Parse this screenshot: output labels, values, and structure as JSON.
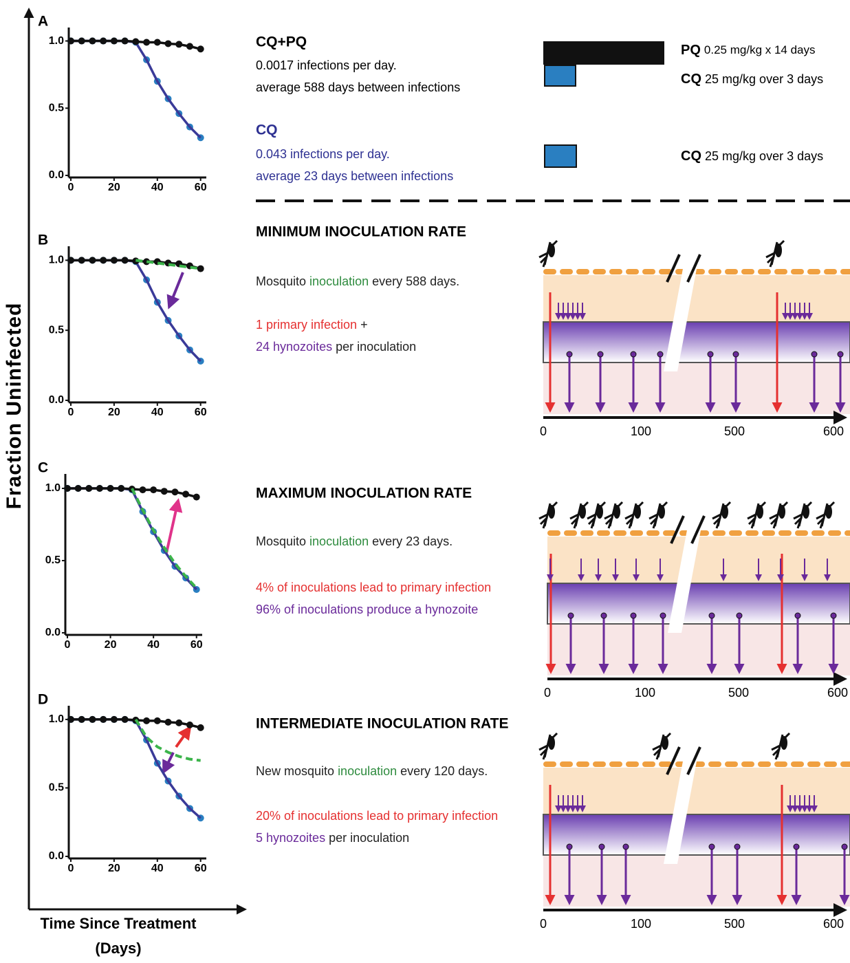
{
  "chart_data": [
    {
      "type": "line",
      "title": "A",
      "x": [
        0,
        5,
        10,
        15,
        20,
        25,
        30,
        35,
        40,
        45,
        50,
        55,
        60
      ],
      "xlim": [
        0,
        62
      ],
      "ylim": [
        0,
        1.1
      ],
      "xticks": [
        0,
        20,
        40,
        60
      ],
      "yticks": [
        {
          "value": 0,
          "label": "0.0"
        },
        {
          "value": 0.5,
          "label": "0.5"
        },
        {
          "value": 1,
          "label": "1.0"
        }
      ],
      "series": [
        {
          "color": "#2a7fc1",
          "line_color": "#3a3a98",
          "markers": true,
          "values": [
            1,
            1,
            1,
            1,
            1,
            1,
            0.99,
            0.86,
            0.7,
            0.57,
            0.46,
            0.36,
            0.28
          ]
        },
        {
          "color": "#111111",
          "line_color": "#111111",
          "markers": true,
          "values": [
            1,
            1,
            1,
            1,
            1,
            1,
            0.995,
            0.99,
            0.99,
            0.98,
            0.975,
            0.96,
            0.94
          ]
        }
      ]
    },
    {
      "type": "line",
      "title": "B",
      "x": [
        0,
        5,
        10,
        15,
        20,
        25,
        30,
        35,
        40,
        45,
        50,
        55,
        60
      ],
      "xlim": [
        0,
        62
      ],
      "ylim": [
        0,
        1.1
      ],
      "xticks": [
        0,
        20,
        40,
        60
      ],
      "yticks": [
        {
          "value": 0,
          "label": "0.0"
        },
        {
          "value": 0.5,
          "label": "0.5"
        },
        {
          "value": 1,
          "label": "1.0"
        }
      ],
      "series": [
        {
          "color": "#2a7fc1",
          "line_color": "#3a3a98",
          "markers": true,
          "values": [
            1,
            1,
            1,
            1,
            1,
            1,
            0.99,
            0.86,
            0.7,
            0.57,
            0.46,
            0.36,
            0.28
          ]
        },
        {
          "color": "#111111",
          "line_color": "#111111",
          "markers": true,
          "values": [
            1,
            1,
            1,
            1,
            1,
            1,
            0.995,
            0.99,
            0.99,
            0.98,
            0.975,
            0.96,
            0.94
          ]
        },
        {
          "color": "#3cb44b",
          "line_color": "#3cb44b",
          "markers": false,
          "dashed": true,
          "values": [
            null,
            null,
            null,
            null,
            null,
            null,
            1,
            0.99,
            0.98,
            0.97,
            0.96,
            0.95,
            0.94
          ]
        }
      ]
    },
    {
      "type": "line",
      "title": "C",
      "x": [
        0,
        5,
        10,
        15,
        20,
        25,
        30,
        35,
        40,
        45,
        50,
        55,
        60
      ],
      "xlim": [
        0,
        62
      ],
      "ylim": [
        0,
        1.1
      ],
      "xticks": [
        0,
        20,
        40,
        60
      ],
      "yticks": [
        {
          "value": 0,
          "label": "0.0"
        },
        {
          "value": 0.5,
          "label": "0.5"
        },
        {
          "value": 1,
          "label": "1.0"
        }
      ],
      "series": [
        {
          "color": "#2a7fc1",
          "line_color": "#3a3a98",
          "markers": true,
          "values": [
            1,
            1,
            1,
            1,
            1,
            1,
            0.99,
            0.84,
            0.7,
            0.57,
            0.46,
            0.38,
            0.3
          ]
        },
        {
          "color": "#111111",
          "line_color": "#111111",
          "markers": true,
          "values": [
            1,
            1,
            1,
            1,
            1,
            1,
            0.995,
            0.99,
            0.99,
            0.98,
            0.975,
            0.96,
            0.94
          ]
        },
        {
          "color": "#3cb44b",
          "line_color": "#3cb44b",
          "markers": false,
          "dashed": true,
          "values": [
            null,
            null,
            null,
            null,
            null,
            null,
            1,
            0.85,
            0.71,
            0.59,
            0.48,
            0.39,
            0.31
          ]
        }
      ]
    },
    {
      "type": "line",
      "title": "D",
      "x": [
        0,
        5,
        10,
        15,
        20,
        25,
        30,
        35,
        40,
        45,
        50,
        55,
        60
      ],
      "xlim": [
        0,
        62
      ],
      "ylim": [
        0,
        1.1
      ],
      "xticks": [
        0,
        20,
        40,
        60
      ],
      "yticks": [
        {
          "value": 0,
          "label": "0.0"
        },
        {
          "value": 0.5,
          "label": "0.5"
        },
        {
          "value": 1,
          "label": "1.0"
        }
      ],
      "series": [
        {
          "color": "#2a7fc1",
          "line_color": "#3a3a98",
          "markers": true,
          "values": [
            1,
            1,
            1,
            1,
            1,
            1,
            0.99,
            0.85,
            0.68,
            0.55,
            0.44,
            0.35,
            0.28
          ]
        },
        {
          "color": "#111111",
          "line_color": "#111111",
          "markers": true,
          "values": [
            1,
            1,
            1,
            1,
            1,
            1,
            0.995,
            0.99,
            0.99,
            0.98,
            0.975,
            0.96,
            0.94
          ]
        },
        {
          "color": "#3cb44b",
          "line_color": "#3cb44b",
          "markers": false,
          "dashed": true,
          "values": [
            null,
            null,
            null,
            null,
            null,
            null,
            1,
            0.87,
            0.8,
            0.76,
            0.73,
            0.71,
            0.7
          ]
        }
      ]
    }
  ],
  "y_label": "Fraction Uninfected",
  "x_label": "Time Since Treatment",
  "x_label_unit": "(Days)",
  "panel_a": {
    "cqpq": {
      "title": "CQ+PQ",
      "lines": [
        "0.0017 infections per day.",
        "average 588 days between infections"
      ]
    },
    "cq": {
      "title": "CQ",
      "lines": [
        "0.043 infections per day.",
        "average 23 days between infections"
      ]
    },
    "doses": [
      {
        "drug": "PQ",
        "dose": "0.25 mg/kg x 14 days"
      },
      {
        "drug": "CQ",
        "dose": "25 mg/kg over 3 days"
      },
      {
        "drug": "CQ",
        "dose": "25 mg/kg over 3 days"
      }
    ]
  },
  "scenarios": [
    {
      "heading": "MINIMUM INOCULATION RATE",
      "lines": [
        [
          {
            "text": "Mosquito ",
            "color": "#222"
          },
          {
            "text": "inoculation",
            "color": "#2e8b3e"
          },
          {
            "text": " every 588 days.",
            "color": "#222"
          }
        ],
        [
          {
            "text": "1 primary infection",
            "color": "#e53030"
          },
          {
            "text": " +",
            "color": "#222"
          }
        ],
        [
          {
            "text": "24 hynozoites",
            "color": "#6a2a9a"
          },
          {
            "text": " per inoculation",
            "color": "#222"
          }
        ]
      ]
    },
    {
      "heading": "MAXIMUM INOCULATION RATE",
      "lines": [
        [
          {
            "text": "Mosquito ",
            "color": "#222"
          },
          {
            "text": "inoculation",
            "color": "#2e8b3e"
          },
          {
            "text": " every 23 days.",
            "color": "#222"
          }
        ],
        [
          {
            "text": "4% of inoculations lead to primary infection",
            "color": "#e53030"
          }
        ],
        [
          {
            "text": "96% of inoculations produce a hynozoite",
            "color": "#6a2a9a"
          }
        ]
      ]
    },
    {
      "heading": "INTERMEDIATE INOCULATION RATE",
      "lines": [
        [
          {
            "text": "New mosquito ",
            "color": "#222"
          },
          {
            "text": "inoculation",
            "color": "#2e8b3e"
          },
          {
            "text": " every 120 days.",
            "color": "#222"
          }
        ],
        [
          {
            "text": "20% of inoculations lead to primary infection",
            "color": "#e53030"
          }
        ],
        [
          {
            "text": "5 hynozoites",
            "color": "#6a2a9a"
          },
          {
            "text": " per inoculation",
            "color": "#222"
          }
        ]
      ]
    }
  ],
  "timeline_ticks": [
    0,
    100,
    500,
    600
  ]
}
